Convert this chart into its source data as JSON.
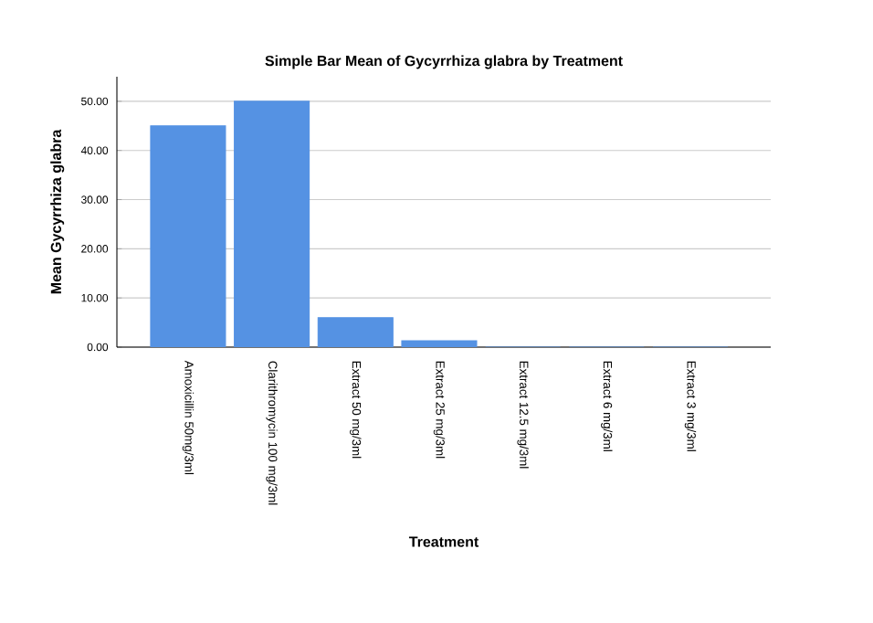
{
  "chart_data": {
    "type": "bar",
    "title": "Simple Bar Mean of Gycyrrhiza glabra   by Treatment",
    "xlabel": "Treatment",
    "ylabel": "Mean Gycyrrhiza glabra",
    "categories": [
      "Amoxicillin 50mg/3ml",
      "Clarithromycin 100 mg/3ml",
      "Extract 50 mg/3ml",
      "Extract 25 mg/3ml",
      "Extract 12.5 mg/3ml",
      "Extract 6 mg/3ml",
      "Extract 3 mg/3ml"
    ],
    "values": [
      45,
      50,
      6,
      1.3,
      0,
      0,
      0
    ],
    "color": "#5592e3",
    "ylim": [
      0,
      55
    ],
    "yticks": [
      {
        "value": 0,
        "label": "0.00"
      },
      {
        "value": 10,
        "label": "10.00"
      },
      {
        "value": 20,
        "label": "20.00"
      },
      {
        "value": 30,
        "label": "30.00"
      },
      {
        "value": 40,
        "label": "40.00"
      },
      {
        "value": 50,
        "label": "50.00"
      }
    ],
    "grid": "y"
  }
}
